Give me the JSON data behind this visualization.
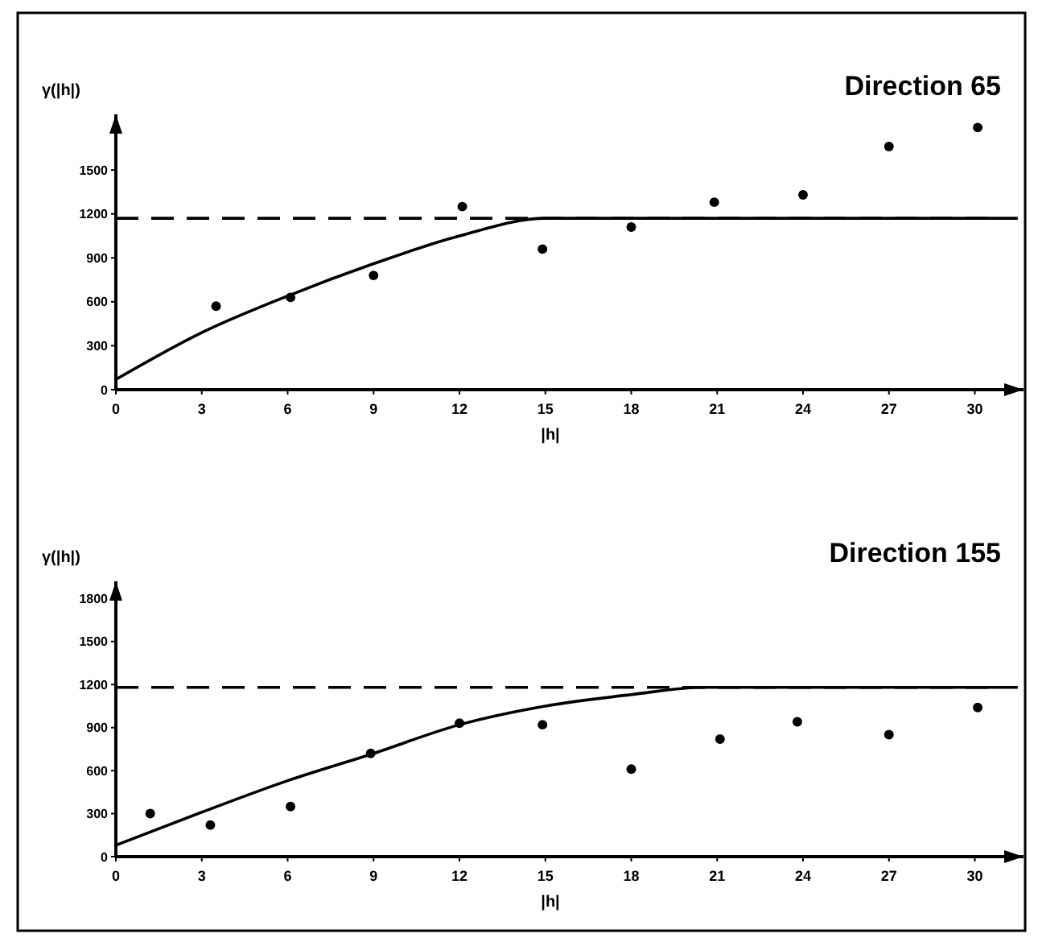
{
  "chart_data": [
    {
      "type": "scatter",
      "title": "Direction 65",
      "xlabel": "|h|",
      "ylabel": "γ(|h|)",
      "xlim": [
        0,
        31.7
      ],
      "ylim": [
        0,
        1880
      ],
      "xticks": [
        0,
        3,
        6,
        9,
        12,
        15,
        18,
        21,
        24,
        27,
        30
      ],
      "yticks": [
        0,
        300,
        600,
        900,
        1200,
        1500
      ],
      "marker": "circle",
      "ref_lines": [
        {
          "axis": "y",
          "value": 1170,
          "line_style": "dashed",
          "color": "#000000"
        }
      ],
      "series": [
        {
          "color": "#000000",
          "x": [
            3.5,
            6.1,
            9,
            12.1,
            14.9,
            18,
            20.9,
            24,
            27,
            30.1
          ],
          "values": [
            570,
            630,
            780,
            1250,
            960,
            1110,
            1280,
            1330,
            1660,
            1790
          ]
        },
        {
          "type": "line",
          "color": "#000000",
          "line_style": "solid",
          "marker": "none",
          "x": [
            0,
            3,
            6,
            9,
            12,
            15,
            31.5
          ],
          "values": [
            70,
            390,
            640,
            860,
            1050,
            1170,
            1170
          ]
        }
      ]
    },
    {
      "type": "scatter",
      "title": "Direction 155",
      "xlabel": "|h|",
      "ylabel": "γ(|h|)",
      "xlim": [
        0,
        31.7
      ],
      "ylim": [
        0,
        1920
      ],
      "xticks": [
        0,
        3,
        6,
        9,
        12,
        15,
        18,
        21,
        24,
        27,
        30
      ],
      "yticks": [
        0,
        300,
        600,
        900,
        1200,
        1500,
        1800
      ],
      "marker": "circle",
      "ref_lines": [
        {
          "axis": "y",
          "value": 1180,
          "line_style": "dashed",
          "color": "#000000"
        }
      ],
      "series": [
        {
          "color": "#000000",
          "x": [
            1.2,
            3.3,
            6.1,
            8.9,
            12,
            14.9,
            18,
            21.1,
            23.8,
            27,
            30.1
          ],
          "values": [
            300,
            220,
            350,
            720,
            930,
            920,
            610,
            820,
            940,
            850,
            1040
          ]
        },
        {
          "type": "line",
          "color": "#000000",
          "line_style": "solid",
          "marker": "none",
          "x": [
            0,
            3,
            6,
            9,
            12,
            15,
            18,
            20.5,
            31.5
          ],
          "values": [
            80,
            310,
            530,
            720,
            920,
            1050,
            1130,
            1180,
            1180
          ]
        }
      ]
    }
  ]
}
